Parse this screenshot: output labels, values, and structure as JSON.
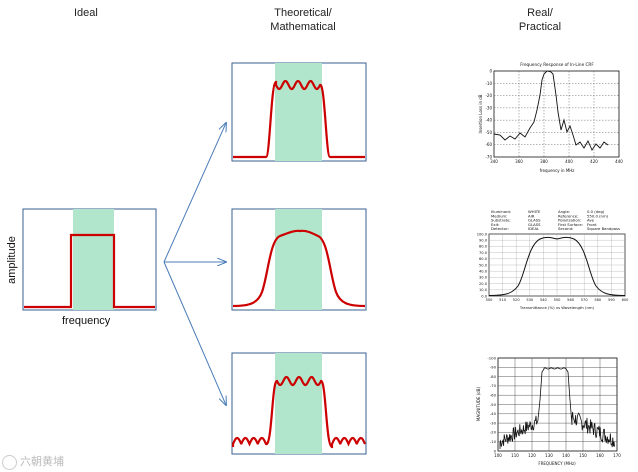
{
  "columns": {
    "ideal": "Ideal",
    "theoretical_line1": "Theoretical/",
    "theoretical_line2": "Mathematical",
    "real_line1": "Real/",
    "real_line2": "Practical"
  },
  "ideal_panel": {
    "ylabel": "amplitude",
    "xlabel": "frequency"
  },
  "real_top": {
    "title": "Frequency Response of In-Line CRF",
    "xlabel": "frequency in MHz",
    "ylabel": "Insertion Loss in dB",
    "x_ticks": [
      "340",
      "360",
      "380",
      "400",
      "420",
      "440"
    ],
    "y_ticks": [
      "-70",
      "-60",
      "-50",
      "-40",
      "-30",
      "-20",
      "-10",
      "0"
    ]
  },
  "real_mid": {
    "info_left": [
      "Illuminant:",
      "Medium:",
      "Substrate:",
      "Exit:",
      "Detector:"
    ],
    "info_mid": [
      "WHITE",
      "AIR",
      "GLASS",
      "GLASS",
      "IDEAL"
    ],
    "info_right": [
      "Angle:",
      "Reference:",
      "Polarization:",
      "First Surface:",
      "Second:"
    ],
    "info_right_vals": [
      "0.0 (deg)",
      "550.0 (nm)",
      "Ave",
      "Front",
      "Square Bandpass"
    ],
    "xlabel": "Transmittance (%) vs Wavelength (nm)",
    "x_ticks": [
      "500",
      "510",
      "520",
      "530",
      "540",
      "550",
      "560",
      "570",
      "580",
      "590",
      "600"
    ],
    "y_ticks": [
      "0.0",
      "10.0",
      "20.0",
      "30.0",
      "40.0",
      "50.0",
      "60.0",
      "70.0",
      "80.0",
      "90.0",
      "100.0"
    ]
  },
  "real_bot": {
    "xlabel": "FREQUENCY (MHz)",
    "ylabel": "MAGNITUDE (dB)",
    "x_ticks": [
      "100",
      "110",
      "120",
      "130",
      "140",
      "150",
      "160",
      "170"
    ],
    "y_ticks": [
      "-100",
      "-90",
      "-80",
      "-70",
      "-60",
      "-50",
      "-40",
      "-30",
      "-20",
      "-10",
      "0"
    ]
  },
  "watermark": "六朝黄埔",
  "colors": {
    "passband_fill": "#b1e6cc",
    "response_curve": "#cc0000",
    "panel_border": "#3a5f90",
    "arrow": "#4a7cb8",
    "measured_curve": "#111111"
  }
}
